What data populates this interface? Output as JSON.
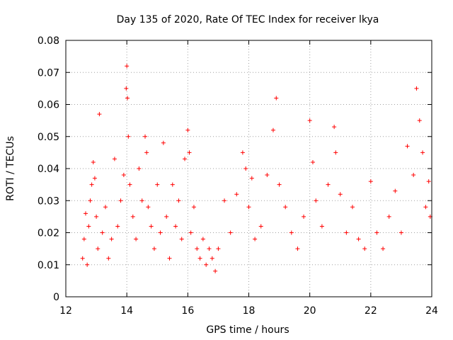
{
  "chart_data": {
    "type": "scatter",
    "title": "Day 135 of 2020, Rate Of TEC Index for receiver lkya",
    "xlabel": "GPS time / hours",
    "ylabel": "ROTI / TECUs",
    "xlim": [
      12,
      24
    ],
    "ylim": [
      0,
      0.08
    ],
    "x_ticks": [
      12,
      14,
      16,
      18,
      20,
      22,
      24
    ],
    "x_tick_labels": [
      "12",
      "14",
      "16",
      "18",
      "20",
      "22",
      "24"
    ],
    "y_ticks": [
      0,
      0.01,
      0.02,
      0.03,
      0.04,
      0.05,
      0.06,
      0.07,
      0.08
    ],
    "y_tick_labels": [
      "0",
      "0.01",
      "0.02",
      "0.03",
      "0.04",
      "0.05",
      "0.06",
      "0.07",
      "0.08"
    ],
    "grid": true,
    "marker": "+",
    "color": "#ff0000",
    "series": [
      {
        "name": "ROTI",
        "x": [
          12.55,
          12.6,
          12.65,
          12.7,
          12.75,
          12.8,
          12.85,
          12.9,
          12.95,
          13.0,
          13.05,
          13.1,
          13.2,
          13.3,
          13.4,
          13.5,
          13.6,
          13.7,
          13.8,
          13.9,
          13.98,
          14.0,
          14.02,
          14.05,
          14.1,
          14.2,
          14.3,
          14.4,
          14.5,
          14.6,
          14.65,
          14.7,
          14.8,
          14.9,
          15.0,
          15.1,
          15.2,
          15.3,
          15.4,
          15.5,
          15.6,
          15.7,
          15.8,
          15.9,
          16.0,
          16.05,
          16.1,
          16.2,
          16.3,
          16.4,
          16.5,
          16.6,
          16.7,
          16.8,
          16.9,
          17.0,
          17.2,
          17.4,
          17.6,
          17.8,
          17.9,
          18.0,
          18.1,
          18.2,
          18.4,
          18.6,
          18.8,
          18.9,
          19.0,
          19.2,
          19.4,
          19.6,
          19.8,
          20.0,
          20.1,
          20.2,
          20.4,
          20.6,
          20.8,
          20.85,
          21.0,
          21.2,
          21.4,
          21.6,
          21.8,
          22.0,
          22.2,
          22.4,
          22.6,
          22.8,
          23.0,
          23.2,
          23.4,
          23.5,
          23.6,
          23.7,
          23.8,
          23.9,
          23.95
        ],
        "y": [
          0.012,
          0.018,
          0.026,
          0.01,
          0.022,
          0.03,
          0.035,
          0.042,
          0.037,
          0.025,
          0.015,
          0.057,
          0.02,
          0.028,
          0.012,
          0.018,
          0.043,
          0.022,
          0.03,
          0.038,
          0.065,
          0.072,
          0.062,
          0.05,
          0.035,
          0.025,
          0.018,
          0.04,
          0.03,
          0.05,
          0.045,
          0.028,
          0.022,
          0.015,
          0.035,
          0.02,
          0.048,
          0.025,
          0.012,
          0.035,
          0.022,
          0.03,
          0.018,
          0.043,
          0.052,
          0.045,
          0.02,
          0.028,
          0.015,
          0.012,
          0.018,
          0.01,
          0.015,
          0.012,
          0.008,
          0.015,
          0.03,
          0.02,
          0.032,
          0.045,
          0.04,
          0.028,
          0.037,
          0.018,
          0.022,
          0.038,
          0.052,
          0.062,
          0.035,
          0.028,
          0.02,
          0.015,
          0.025,
          0.055,
          0.042,
          0.03,
          0.022,
          0.035,
          0.053,
          0.045,
          0.032,
          0.02,
          0.028,
          0.018,
          0.015,
          0.036,
          0.02,
          0.015,
          0.025,
          0.033,
          0.02,
          0.047,
          0.038,
          0.065,
          0.055,
          0.045,
          0.028,
          0.036,
          0.025
        ]
      }
    ]
  }
}
